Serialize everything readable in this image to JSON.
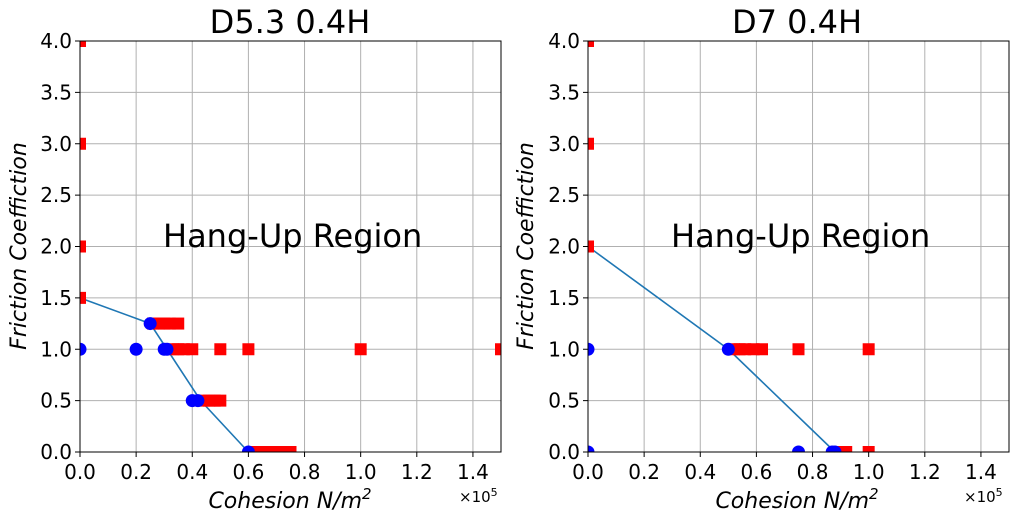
{
  "colors": {
    "grid": "#b0b0b0",
    "fit_line": "#1f77b4",
    "stuck": "#ff0000",
    "free": "#0000ff"
  },
  "chart_data": [
    {
      "type": "scatter",
      "title": "D5.3 0.4H",
      "xlabel": "Cohesion N/m",
      "xlabel_sup": "2",
      "ylabel": "Friction Coeffiction",
      "x_offset_text": "×10",
      "x_offset_sup": "5",
      "xlim": [
        0,
        1.5
      ],
      "ylim": [
        0,
        4.0
      ],
      "x_scale": 100000,
      "grid": true,
      "xticks": [
        "0.0",
        "0.2",
        "0.4",
        "0.6",
        "0.8",
        "1.0",
        "1.2",
        "1.4"
      ],
      "xtick_values": [
        0,
        0.2,
        0.4,
        0.6,
        0.8,
        1.0,
        1.2,
        1.4
      ],
      "yticks": [
        "0.0",
        "0.5",
        "1.0",
        "1.5",
        "2.0",
        "2.5",
        "3.0",
        "3.5",
        "4.0"
      ],
      "ytick_values": [
        0,
        0.5,
        1.0,
        1.5,
        2.0,
        2.5,
        3.0,
        3.5,
        4.0
      ],
      "annotation": {
        "text": "Hang-Up Region",
        "x": 0.3,
        "y": 2.0
      },
      "fit_line": {
        "x": [
          0,
          0.25,
          0.31,
          0.43,
          0.6
        ],
        "y": [
          1.5,
          1.25,
          1.0,
          0.5,
          0.0
        ]
      },
      "series": [
        {
          "marker": "square",
          "color": "#ff0000",
          "points": [
            [
              0,
              4.0
            ],
            [
              0,
              3.0
            ],
            [
              0,
              2.0
            ],
            [
              0,
              1.5
            ],
            [
              0.26,
              1.25
            ],
            [
              0.28,
              1.25
            ],
            [
              0.3,
              1.25
            ],
            [
              0.32,
              1.25
            ],
            [
              0.35,
              1.25
            ],
            [
              0.33,
              1.0
            ],
            [
              0.35,
              1.0
            ],
            [
              0.37,
              1.0
            ],
            [
              0.4,
              1.0
            ],
            [
              0.5,
              1.0
            ],
            [
              0.6,
              1.0
            ],
            [
              1.0,
              1.0
            ],
            [
              1.5,
              1.0
            ],
            [
              0.44,
              0.5
            ],
            [
              0.46,
              0.5
            ],
            [
              0.48,
              0.5
            ],
            [
              0.5,
              0.5
            ],
            [
              0.63,
              0.0
            ],
            [
              0.65,
              0.0
            ],
            [
              0.68,
              0.0
            ],
            [
              0.7,
              0.0
            ],
            [
              0.72,
              0.0
            ],
            [
              0.75,
              0.0
            ]
          ]
        },
        {
          "marker": "circle",
          "color": "#0000ff",
          "points": [
            [
              0,
              1.0
            ],
            [
              0.2,
              1.0
            ],
            [
              0.3,
              1.0
            ],
            [
              0.31,
              1.0
            ],
            [
              0.25,
              1.25
            ],
            [
              0.4,
              0.5
            ],
            [
              0.42,
              0.5
            ],
            [
              0.6,
              0.0
            ]
          ]
        }
      ]
    },
    {
      "type": "scatter",
      "title": "D7 0.4H",
      "xlabel": "Cohesion N/m",
      "xlabel_sup": "2",
      "ylabel": "Friction Coeffiction",
      "x_offset_text": "×10",
      "x_offset_sup": "5",
      "xlim": [
        0,
        1.5
      ],
      "ylim": [
        0,
        4.0
      ],
      "x_scale": 100000,
      "grid": true,
      "xticks": [
        "0.0",
        "0.2",
        "0.4",
        "0.6",
        "0.8",
        "1.0",
        "1.2",
        "1.4"
      ],
      "xtick_values": [
        0,
        0.2,
        0.4,
        0.6,
        0.8,
        1.0,
        1.2,
        1.4
      ],
      "yticks": [
        "0.0",
        "0.5",
        "1.0",
        "1.5",
        "2.0",
        "2.5",
        "3.0",
        "3.5",
        "4.0"
      ],
      "ytick_values": [
        0,
        0.5,
        1.0,
        1.5,
        2.0,
        2.5,
        3.0,
        3.5,
        4.0
      ],
      "annotation": {
        "text": "Hang-Up Region",
        "x": 0.3,
        "y": 2.0
      },
      "fit_line": {
        "x": [
          0,
          0.5,
          0.88
        ],
        "y": [
          2.0,
          1.0,
          0.0
        ]
      },
      "series": [
        {
          "marker": "square",
          "color": "#ff0000",
          "points": [
            [
              0,
              4.0
            ],
            [
              0,
              3.0
            ],
            [
              0,
              2.0
            ],
            [
              0.52,
              1.0
            ],
            [
              0.54,
              1.0
            ],
            [
              0.56,
              1.0
            ],
            [
              0.59,
              1.0
            ],
            [
              0.62,
              1.0
            ],
            [
              0.75,
              1.0
            ],
            [
              1.0,
              1.0
            ],
            [
              0.9,
              0.0
            ],
            [
              0.92,
              0.0
            ],
            [
              1.0,
              0.0
            ]
          ]
        },
        {
          "marker": "circle",
          "color": "#0000ff",
          "points": [
            [
              0,
              1.0
            ],
            [
              0,
              0.0
            ],
            [
              0.5,
              1.0
            ],
            [
              0.75,
              0.0
            ],
            [
              0.87,
              0.0
            ],
            [
              0.88,
              0.0
            ]
          ]
        }
      ]
    }
  ]
}
